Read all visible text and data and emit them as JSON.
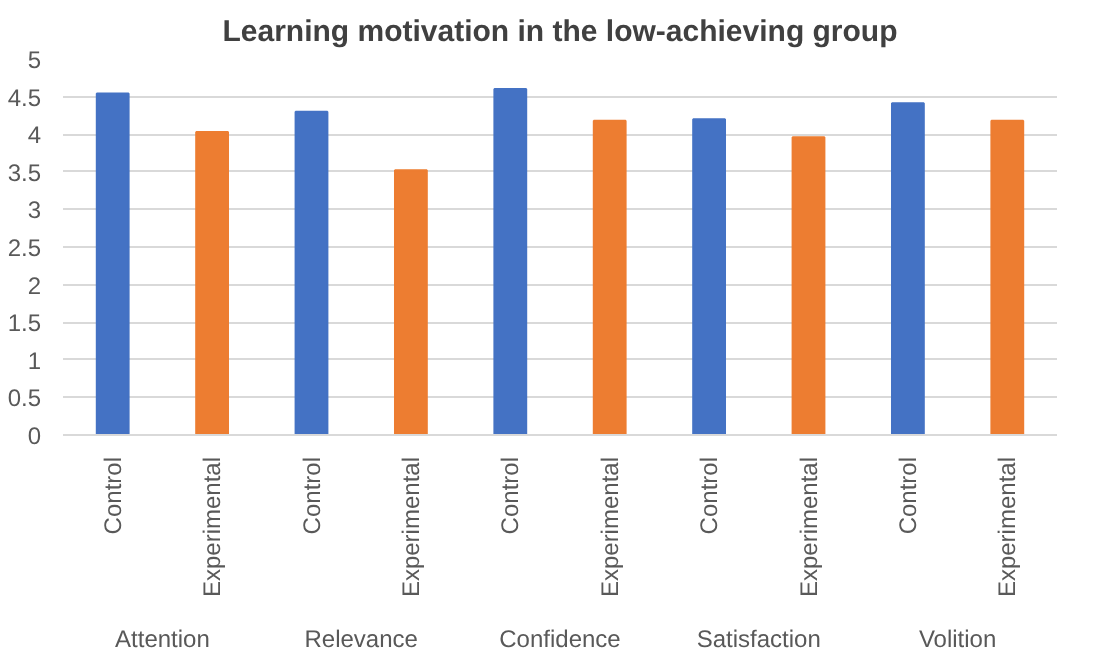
{
  "chart_data": {
    "type": "bar",
    "title": "Learning motivation in the low-achieving group",
    "categories": [
      "Control",
      "Experimental",
      "Control",
      "Experimental",
      "Control",
      "Experimental",
      "Control",
      "Experimental",
      "Control",
      "Experimental"
    ],
    "values": [
      4.54,
      4.03,
      4.3,
      3.52,
      4.6,
      4.18,
      4.2,
      3.96,
      4.41,
      4.18
    ],
    "colors": [
      "#4472c4",
      "#ed7d31",
      "#4472c4",
      "#ed7d31",
      "#4472c4",
      "#ed7d31",
      "#4472c4",
      "#ed7d31",
      "#4472c4",
      "#ed7d31"
    ],
    "annotations": [
      "Attention",
      "Relevance",
      "Confidence",
      "Satisfaction",
      "Volition"
    ],
    "ylim": [
      0,
      5
    ],
    "yticks": [
      0,
      0.5,
      1,
      1.5,
      2,
      2.5,
      3,
      3.5,
      4,
      4.5,
      5
    ],
    "grid": "y"
  }
}
